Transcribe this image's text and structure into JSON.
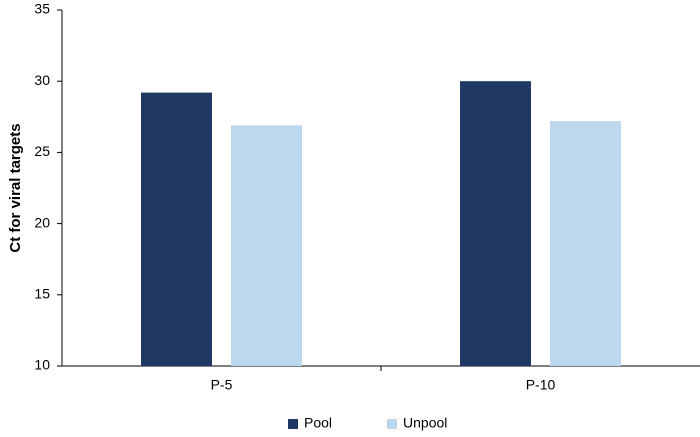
{
  "chart_data": {
    "type": "bar",
    "y_label": "Ct for viral targets",
    "categories": [
      "P-5",
      "P-10"
    ],
    "series": [
      {
        "name": "Pool",
        "color": "#1f3864",
        "values": [
          29.2,
          30.0
        ]
      },
      {
        "name": "Unpool",
        "color": "#bdd7ee",
        "values": [
          26.9,
          27.2
        ]
      }
    ],
    "ylim": [
      10,
      35
    ],
    "yticks": [
      10,
      15,
      20,
      25,
      30,
      35
    ],
    "grid": false,
    "legend": "bottom"
  }
}
